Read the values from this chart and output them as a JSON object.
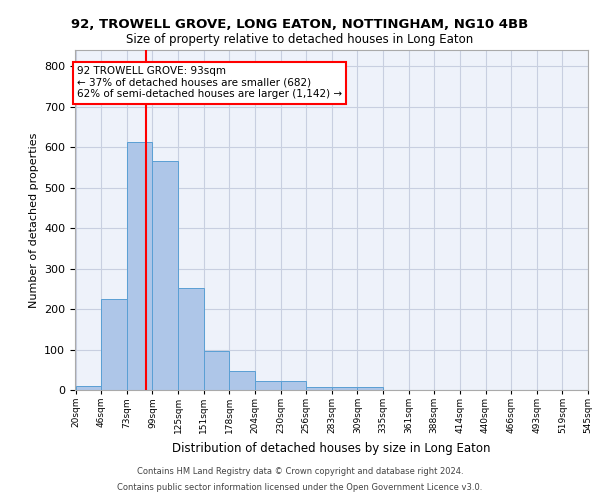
{
  "title_line1": "92, TROWELL GROVE, LONG EATON, NOTTINGHAM, NG10 4BB",
  "title_line2": "Size of property relative to detached houses in Long Eaton",
  "xlabel": "Distribution of detached houses by size in Long Eaton",
  "ylabel": "Number of detached properties",
  "bar_color": "#aec6e8",
  "bar_edge_color": "#5a9fd4",
  "bin_labels": [
    "20sqm",
    "46sqm",
    "73sqm",
    "99sqm",
    "125sqm",
    "151sqm",
    "178sqm",
    "204sqm",
    "230sqm",
    "256sqm",
    "283sqm",
    "309sqm",
    "335sqm",
    "361sqm",
    "388sqm",
    "414sqm",
    "440sqm",
    "466sqm",
    "493sqm",
    "519sqm",
    "545sqm"
  ],
  "bar_values": [
    10,
    224,
    612,
    565,
    252,
    97,
    46,
    22,
    22,
    8,
    8,
    8,
    0,
    0,
    0,
    0,
    0,
    0,
    0,
    0
  ],
  "ylim": [
    0,
    840
  ],
  "yticks": [
    0,
    100,
    200,
    300,
    400,
    500,
    600,
    700,
    800
  ],
  "bin_edges_sqm": [
    20,
    46,
    73,
    99,
    125,
    151,
    178,
    204,
    230,
    256,
    283,
    309,
    335,
    361,
    388,
    414,
    440,
    466,
    493,
    519,
    545
  ],
  "annotation_text": "92 TROWELL GROVE: 93sqm\n← 37% of detached houses are smaller (682)\n62% of semi-detached houses are larger (1,142) →",
  "annotation_box_color": "white",
  "annotation_box_edgecolor": "red",
  "vline_color": "red",
  "property_sqm": 93,
  "footer_line1": "Contains HM Land Registry data © Crown copyright and database right 2024.",
  "footer_line2": "Contains public sector information licensed under the Open Government Licence v3.0.",
  "background_color": "#eef2fa",
  "grid_color": "#c8cfe0",
  "title1_fontsize": 9.5,
  "title2_fontsize": 8.5,
  "ylabel_fontsize": 8,
  "xlabel_fontsize": 8.5
}
